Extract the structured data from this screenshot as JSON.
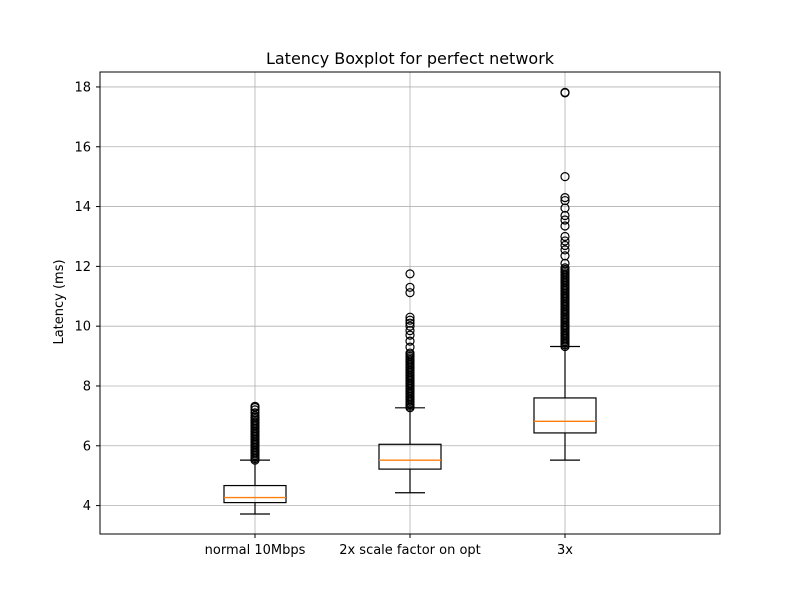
{
  "chart_data": {
    "type": "box",
    "title": "Latency Boxplot for perfect network",
    "xlabel": "",
    "ylabel": "Latency (ms)",
    "ylim": [
      3.05,
      18.5
    ],
    "yticks": [
      4,
      6,
      8,
      10,
      12,
      14,
      16,
      18
    ],
    "grid": true,
    "categories": [
      "normal 10Mbps",
      "2x scale factor on opt",
      "3x"
    ],
    "boxes": [
      {
        "category": "normal 10Mbps",
        "whisker_low": 3.72,
        "q1": 4.1,
        "median": 4.27,
        "q3": 4.67,
        "whisker_high": 5.52,
        "outliers_dense_range": [
          5.52,
          6.95
        ],
        "outliers": [
          7.0,
          7.1,
          7.2,
          7.28,
          7.32
        ]
      },
      {
        "category": "2x scale factor on opt",
        "whisker_low": 4.43,
        "q1": 5.22,
        "median": 5.52,
        "q3": 6.05,
        "whisker_high": 7.27,
        "outliers_dense_range": [
          7.27,
          9.1
        ],
        "outliers": [
          9.3,
          9.5,
          9.7,
          9.85,
          10.0,
          10.1,
          10.2,
          10.3,
          11.12,
          11.3,
          11.75
        ]
      },
      {
        "category": "3x",
        "whisker_low": 5.52,
        "q1": 6.43,
        "median": 6.82,
        "q3": 7.6,
        "whisker_high": 9.32,
        "outliers_dense_range": [
          9.32,
          11.95
        ],
        "outliers": [
          12.1,
          12.35,
          12.55,
          12.7,
          12.85,
          13.0,
          13.35,
          13.55,
          13.7,
          13.95,
          14.2,
          14.3,
          15.0,
          17.8,
          17.82
        ]
      }
    ],
    "colors": {
      "box": "#000000",
      "median": "#ff7f0e",
      "grid": "#b0b0b0",
      "outlier": "#000000"
    }
  }
}
